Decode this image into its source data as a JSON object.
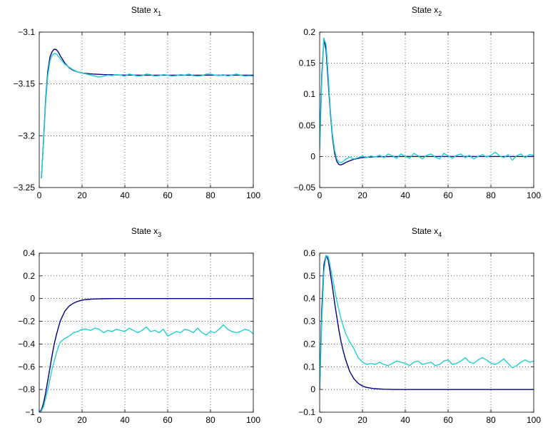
{
  "chart_data": [
    {
      "type": "line",
      "title_text": "State x",
      "title_subscript": "1",
      "xlim": [
        0,
        100
      ],
      "ylim": [
        -3.25,
        -3.1
      ],
      "xticks": [
        0,
        20,
        40,
        60,
        80,
        100
      ],
      "xtick_labels": [
        "0",
        "20",
        "40",
        "60",
        "80",
        "100"
      ],
      "yticks": [
        -3.25,
        -3.2,
        -3.15,
        -3.1
      ],
      "ytick_labels": [
        "−3.25",
        "−3.2",
        "−3.15",
        "−3.1"
      ],
      "grid": true,
      "series": [
        {
          "color": "#00008b",
          "x": [
            1,
            2,
            3,
            4,
            5,
            6,
            7,
            8,
            9,
            10,
            12,
            14,
            16,
            18,
            20,
            25,
            30,
            40,
            50,
            60,
            70,
            80,
            90,
            100
          ],
          "y": [
            -3.241,
            -3.205,
            -3.165,
            -3.138,
            -3.124,
            -3.119,
            -3.1165,
            -3.117,
            -3.1195,
            -3.1235,
            -3.13,
            -3.1345,
            -3.137,
            -3.1385,
            -3.1395,
            -3.1405,
            -3.141,
            -3.1415,
            -3.1416,
            -3.1416,
            -3.1416,
            -3.1416,
            -3.1416,
            -3.1416
          ]
        },
        {
          "color": "#20d0d0",
          "x": [
            1,
            2,
            3,
            4,
            5,
            6,
            7,
            8,
            9,
            10,
            12,
            14,
            16,
            18,
            20,
            22,
            24,
            26,
            28,
            30,
            32,
            34,
            36,
            38,
            40,
            42,
            44,
            46,
            48,
            50,
            52,
            54,
            56,
            58,
            60,
            62,
            64,
            66,
            68,
            70,
            72,
            74,
            76,
            78,
            80,
            82,
            84,
            86,
            88,
            90,
            92,
            94,
            96,
            98,
            100
          ],
          "y": [
            -3.241,
            -3.207,
            -3.168,
            -3.142,
            -3.128,
            -3.1225,
            -3.1205,
            -3.121,
            -3.1235,
            -3.1265,
            -3.131,
            -3.134,
            -3.1365,
            -3.1385,
            -3.1395,
            -3.1405,
            -3.1415,
            -3.1425,
            -3.1435,
            -3.1425,
            -3.1415,
            -3.142,
            -3.141,
            -3.1415,
            -3.1425,
            -3.1405,
            -3.1415,
            -3.1425,
            -3.142,
            -3.1405,
            -3.141,
            -3.1425,
            -3.142,
            -3.141,
            -3.1415,
            -3.1425,
            -3.142,
            -3.141,
            -3.1415,
            -3.1405,
            -3.142,
            -3.1425,
            -3.142,
            -3.1405,
            -3.1405,
            -3.1415,
            -3.142,
            -3.141,
            -3.1425,
            -3.1415,
            -3.1405,
            -3.1415,
            -3.1425,
            -3.142,
            -3.1425
          ]
        }
      ]
    },
    {
      "type": "line",
      "title_text": "State x",
      "title_subscript": "2",
      "xlim": [
        0,
        100
      ],
      "ylim": [
        -0.05,
        0.2
      ],
      "xticks": [
        0,
        20,
        40,
        60,
        80,
        100
      ],
      "xtick_labels": [
        "0",
        "20",
        "40",
        "60",
        "80",
        "100"
      ],
      "yticks": [
        -0.05,
        0,
        0.05,
        0.1,
        0.15,
        0.2
      ],
      "ytick_labels": [
        "−0.05",
        "0",
        "0.05",
        "0.1",
        "0.15",
        "0.2"
      ],
      "grid": true,
      "series": [
        {
          "color": "#00008b",
          "x": [
            0,
            1,
            2,
            3,
            4,
            5,
            6,
            7,
            8,
            9,
            10,
            11,
            12,
            14,
            16,
            18,
            20,
            25,
            30,
            40,
            50,
            100
          ],
          "y": [
            0.02,
            0.13,
            0.19,
            0.17,
            0.12,
            0.07,
            0.03,
            0.005,
            -0.008,
            -0.013,
            -0.0135,
            -0.012,
            -0.01,
            -0.007,
            -0.0045,
            -0.003,
            -0.0018,
            -0.0006,
            -0.0002,
            0,
            0,
            0
          ]
        },
        {
          "color": "#20d0d0",
          "x": [
            0,
            1,
            2,
            3,
            4,
            5,
            6,
            7,
            8,
            9,
            10,
            11,
            12,
            14,
            16,
            18,
            20,
            22,
            24,
            26,
            28,
            30,
            32,
            34,
            36,
            38,
            40,
            42,
            44,
            46,
            48,
            50,
            52,
            54,
            56,
            58,
            60,
            62,
            64,
            66,
            68,
            70,
            72,
            74,
            76,
            78,
            80,
            82,
            84,
            86,
            88,
            90,
            92,
            94,
            96,
            98,
            100
          ],
          "y": [
            0.01,
            0.12,
            0.19,
            0.18,
            0.13,
            0.075,
            0.035,
            0.01,
            -0.004,
            -0.009,
            -0.01,
            -0.008,
            -0.005,
            -0.001,
            -0.004,
            -0.002,
            0.001,
            -0.002,
            0.001,
            -0.001,
            0.002,
            -0.002,
            0.004,
            0.001,
            -0.003,
            0.004,
            0,
            -0.003,
            0.005,
            0.001,
            -0.004,
            0.002,
            0.004,
            -0.001,
            -0.004,
            0.005,
            0.001,
            -0.003,
            0.002,
            0.004,
            -0.002,
            0.002,
            -0.004,
            0,
            0.003,
            -0.001,
            0.002,
            0.007,
            0.001,
            -0.002,
            0.003,
            -0.006,
            0.001,
            0.004,
            -0.002,
            0.003,
            0.002
          ]
        }
      ]
    },
    {
      "type": "line",
      "title_text": "State x",
      "title_subscript": "3",
      "xlim": [
        0,
        100
      ],
      "ylim": [
        -1,
        0.4
      ],
      "xticks": [
        0,
        20,
        40,
        60,
        80,
        100
      ],
      "xtick_labels": [
        "0",
        "20",
        "40",
        "60",
        "80",
        "100"
      ],
      "yticks": [
        -1,
        -0.8,
        -0.6,
        -0.4,
        -0.2,
        0,
        0.2,
        0.4
      ],
      "ytick_labels": [
        "−1",
        "−0.8",
        "−0.6",
        "−0.4",
        "−0.2",
        "0",
        "0.2",
        "0.4"
      ],
      "grid": true,
      "series": [
        {
          "color": "#00008b",
          "x": [
            0,
            1,
            2,
            3,
            4,
            5,
            6,
            7,
            8,
            9,
            10,
            12,
            14,
            16,
            18,
            20,
            22,
            25,
            30,
            35,
            40,
            100
          ],
          "y": [
            -1,
            -0.98,
            -0.92,
            -0.83,
            -0.72,
            -0.61,
            -0.5,
            -0.4,
            -0.32,
            -0.25,
            -0.19,
            -0.11,
            -0.065,
            -0.04,
            -0.024,
            -0.014,
            -0.008,
            -0.004,
            -0.001,
            0,
            0,
            0
          ]
        },
        {
          "color": "#20d0d0",
          "x": [
            0,
            1,
            2,
            3,
            4,
            5,
            6,
            7,
            8,
            9,
            10,
            12,
            14,
            16,
            18,
            20,
            22,
            24,
            26,
            28,
            30,
            32,
            34,
            36,
            38,
            40,
            42,
            44,
            46,
            48,
            50,
            52,
            54,
            56,
            58,
            60,
            62,
            64,
            66,
            68,
            70,
            72,
            74,
            76,
            78,
            80,
            82,
            84,
            86,
            88,
            90,
            92,
            94,
            96,
            98,
            100
          ],
          "y": [
            -1,
            -0.99,
            -0.95,
            -0.88,
            -0.8,
            -0.71,
            -0.62,
            -0.55,
            -0.48,
            -0.42,
            -0.38,
            -0.35,
            -0.33,
            -0.3,
            -0.29,
            -0.27,
            -0.27,
            -0.28,
            -0.26,
            -0.27,
            -0.3,
            -0.28,
            -0.29,
            -0.27,
            -0.28,
            -0.29,
            -0.26,
            -0.28,
            -0.3,
            -0.28,
            -0.25,
            -0.29,
            -0.28,
            -0.3,
            -0.27,
            -0.33,
            -0.31,
            -0.29,
            -0.3,
            -0.27,
            -0.28,
            -0.3,
            -0.26,
            -0.3,
            -0.32,
            -0.29,
            -0.3,
            -0.27,
            -0.23,
            -0.27,
            -0.29,
            -0.3,
            -0.29,
            -0.27,
            -0.28,
            -0.31
          ]
        }
      ]
    },
    {
      "type": "line",
      "title_text": "State x",
      "title_subscript": "4",
      "xlim": [
        0,
        100
      ],
      "ylim": [
        -0.1,
        0.6
      ],
      "xticks": [
        0,
        20,
        40,
        60,
        80,
        100
      ],
      "xtick_labels": [
        "0",
        "20",
        "40",
        "60",
        "80",
        "100"
      ],
      "yticks": [
        -0.1,
        0,
        0.1,
        0.2,
        0.3,
        0.4,
        0.5,
        0.6
      ],
      "ytick_labels": [
        "−0.1",
        "0",
        "0.1",
        "0.2",
        "0.3",
        "0.4",
        "0.5",
        "0.6"
      ],
      "grid": true,
      "series": [
        {
          "color": "#00008b",
          "x": [
            0,
            1,
            2,
            3,
            4,
            5,
            6,
            7,
            8,
            9,
            10,
            11,
            12,
            14,
            16,
            18,
            20,
            22,
            25,
            30,
            35,
            40,
            100
          ],
          "y": [
            0,
            0.35,
            0.55,
            0.59,
            0.57,
            0.51,
            0.45,
            0.38,
            0.32,
            0.26,
            0.21,
            0.17,
            0.135,
            0.08,
            0.047,
            0.027,
            0.015,
            0.009,
            0.004,
            0.001,
            0,
            0,
            0
          ]
        },
        {
          "color": "#20d0d0",
          "x": [
            0,
            1,
            2,
            3,
            4,
            5,
            6,
            7,
            8,
            9,
            10,
            11,
            12,
            14,
            16,
            18,
            20,
            22,
            24,
            26,
            28,
            30,
            32,
            34,
            36,
            38,
            40,
            42,
            44,
            46,
            48,
            50,
            52,
            54,
            56,
            58,
            60,
            62,
            64,
            66,
            68,
            70,
            72,
            74,
            76,
            78,
            80,
            82,
            84,
            86,
            88,
            90,
            92,
            94,
            96,
            98,
            100
          ],
          "y": [
            0,
            0.3,
            0.52,
            0.59,
            0.585,
            0.54,
            0.49,
            0.44,
            0.39,
            0.35,
            0.31,
            0.28,
            0.25,
            0.21,
            0.18,
            0.14,
            0.12,
            0.11,
            0.115,
            0.11,
            0.12,
            0.11,
            0.105,
            0.115,
            0.125,
            0.12,
            0.115,
            0.105,
            0.12,
            0.125,
            0.11,
            0.115,
            0.12,
            0.105,
            0.11,
            0.125,
            0.13,
            0.11,
            0.115,
            0.125,
            0.14,
            0.12,
            0.115,
            0.13,
            0.14,
            0.13,
            0.115,
            0.11,
            0.12,
            0.135,
            0.115,
            0.095,
            0.105,
            0.12,
            0.13,
            0.12,
            0.125
          ]
        }
      ]
    }
  ]
}
